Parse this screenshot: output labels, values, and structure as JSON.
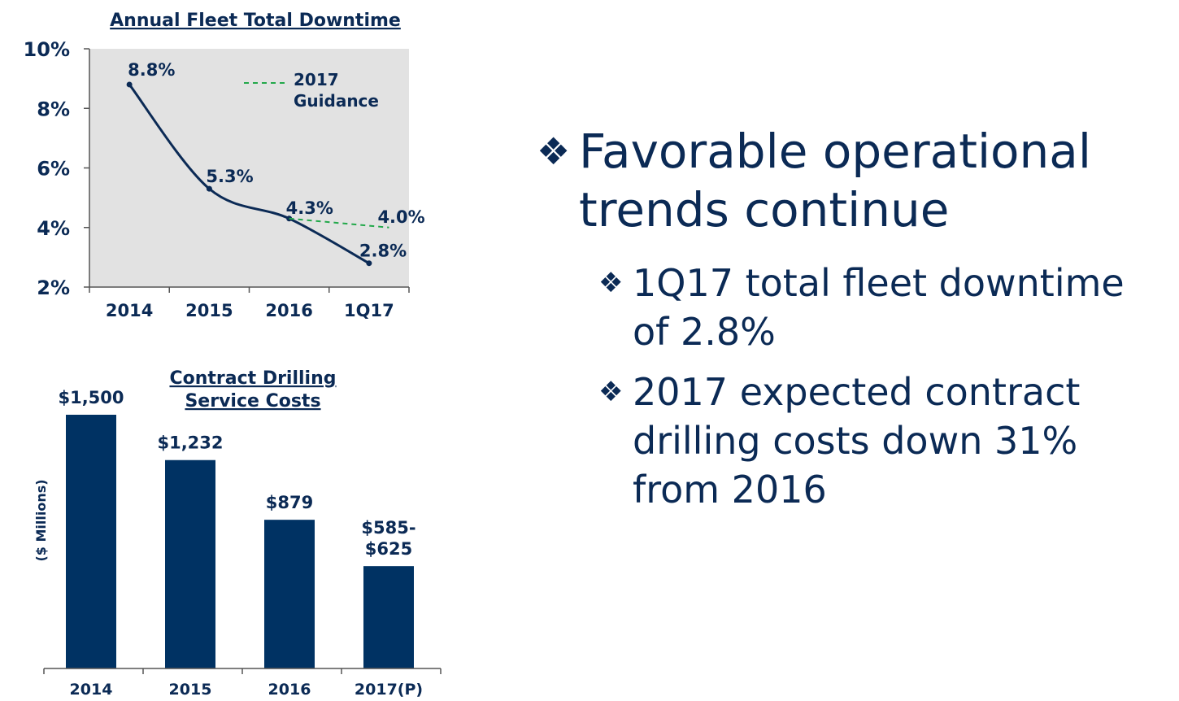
{
  "chart_data": [
    {
      "type": "line",
      "title": "Annual Fleet Total Downtime",
      "categories": [
        "2014",
        "2015",
        "2016",
        "1Q17"
      ],
      "series": [
        {
          "values": [
            8.8,
            5.3,
            4.3,
            2.8
          ],
          "labels": [
            "8.8%",
            "5.3%",
            "4.3%",
            "2.8%"
          ],
          "color": "#0b2a55"
        }
      ],
      "guidance": {
        "name": "2017 Guidance",
        "name_lines": [
          "2017",
          "Guidance"
        ],
        "from": 4.3,
        "to": 4.0,
        "label": "4.0%",
        "color": "#22a84a",
        "style": "dashed"
      },
      "ylim": [
        2,
        10
      ],
      "yticks": [
        2,
        4,
        6,
        8,
        10
      ],
      "ytick_labels": [
        "2%",
        "4%",
        "6%",
        "8%",
        "10%"
      ],
      "background": "#e2e2e2",
      "grid": false,
      "legend": "top-right"
    },
    {
      "type": "bar",
      "title": "Contract Drilling Service Costs",
      "title_lines": [
        "Contract Drilling",
        "Service Costs"
      ],
      "ylabel": "($ Millions)",
      "categories": [
        "2014",
        "2015",
        "2016",
        "2017(P)"
      ],
      "values": [
        1500,
        1232,
        879,
        605
      ],
      "labels": [
        [
          "$1,500"
        ],
        [
          "$1,232"
        ],
        [
          "$879"
        ],
        [
          "$585-",
          "$625"
        ]
      ],
      "ylim": [
        0,
        1500
      ],
      "bar_color": "#003263",
      "grid": false
    }
  ],
  "bullets": {
    "main": "Favorable operational trends continue",
    "main_lines": [
      "Favorable operational",
      "trends continue"
    ],
    "marker": "❖",
    "subs": [
      {
        "lines": [
          "1Q17 total fleet downtime",
          "of 2.8%"
        ]
      },
      {
        "lines": [
          "2017 expected contract",
          "drilling costs down 31%",
          "from 2016"
        ]
      }
    ]
  }
}
